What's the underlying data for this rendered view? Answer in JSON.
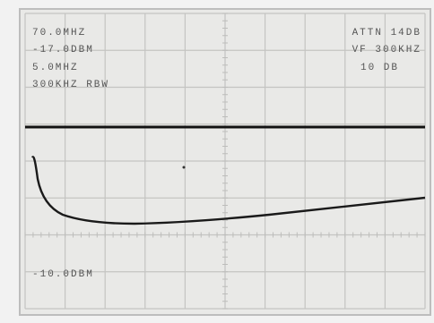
{
  "readouts": {
    "center_frequency": "70.0MHZ",
    "reference_level": "-17.0DBM",
    "span": "5.0MHZ",
    "resolution_bandwidth": "300KHZ RBW",
    "attenuation": "ATTN 14DB",
    "video_filter": "VF 300KHZ",
    "scale": "10 DB",
    "marker_level": "-10.0DBM"
  }
}
